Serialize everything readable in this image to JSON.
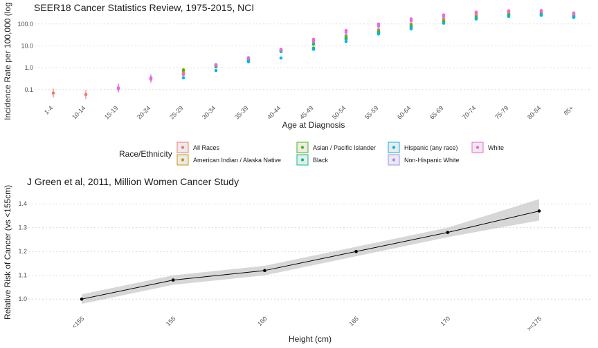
{
  "chart_data": [
    {
      "type": "scatter",
      "title": "SEER18 Cancer Statistics Review, 1975-2015, NCI",
      "xlabel": "Age at Diagnosis",
      "ylabel": "Incidence Rate per 100,000 (log",
      "yscale": "log10",
      "ylim": [
        0.02,
        700
      ],
      "yticks": [
        0.1,
        1,
        10,
        100
      ],
      "ytick_labels": [
        "0.1",
        "1.0",
        "10.0",
        "100.0"
      ],
      "grid": true,
      "legend_title": "Race/Ethnicity",
      "legend_position": "bottom",
      "categories": [
        "1-4",
        "10-14",
        "15-19",
        "20-24",
        "25-29",
        "30-34",
        "35-39",
        "40-44",
        "45-49",
        "50-54",
        "55-59",
        "60-64",
        "65-69",
        "70-74",
        "75-79",
        "80-84",
        "85+"
      ],
      "series": [
        {
          "name": "All Races",
          "color": "#F8766D",
          "values": [
            0.07,
            0.06,
            0.12,
            0.35,
            0.55,
            1.3,
            2.6,
            6.5,
            15,
            30,
            55,
            100,
            170,
            250,
            320,
            330,
            250
          ]
        },
        {
          "name": "American Indian / Alaska Native",
          "color": "#C49A00",
          "values": [
            null,
            null,
            null,
            null,
            0.7,
            null,
            null,
            null,
            7,
            20,
            40,
            80,
            140,
            230,
            280,
            320,
            260
          ]
        },
        {
          "name": "Asian / Pacific Islander",
          "color": "#53B400",
          "values": [
            null,
            null,
            null,
            null,
            0.8,
            1.1,
            2.2,
            6,
            8,
            25,
            45,
            85,
            130,
            200,
            260,
            280,
            220
          ]
        },
        {
          "name": "Black",
          "color": "#00C094",
          "values": [
            null,
            null,
            null,
            null,
            0.5,
            1.2,
            2.2,
            5.5,
            12,
            22,
            40,
            70,
            110,
            180,
            240,
            260,
            200
          ]
        },
        {
          "name": "Hispanic (any race)",
          "color": "#00B6EB",
          "values": [
            null,
            null,
            null,
            null,
            0.35,
            0.75,
            1.9,
            2.8,
            7,
            16,
            35,
            60,
            110,
            170,
            220,
            250,
            210
          ]
        },
        {
          "name": "Non-Hispanic White",
          "color": "#A58AFF",
          "values": [
            null,
            null,
            0.12,
            0.35,
            0.5,
            1.4,
            2.9,
            6.5,
            18,
            42,
            80,
            140,
            220,
            310,
            370,
            370,
            290
          ]
        },
        {
          "name": "White",
          "color": "#FB61D7",
          "values": [
            null,
            null,
            0.11,
            0.3,
            0.5,
            1.3,
            2.7,
            7,
            20,
            50,
            100,
            170,
            260,
            350,
            400,
            410,
            320
          ]
        }
      ]
    },
    {
      "type": "line",
      "title": "J Green et al, 2011, Million Women Cancer Study",
      "xlabel": "Height (cm)",
      "ylabel": "Relative Risk of Cancer (vs <155cm)",
      "ylim": [
        0.96,
        1.45
      ],
      "yticks": [
        1.0,
        1.1,
        1.2,
        1.3,
        1.4
      ],
      "ytick_labels": [
        "1.0",
        "1.1",
        "1.2",
        "1.3",
        "1.4"
      ],
      "grid": true,
      "categories": [
        "<155",
        "155",
        "160",
        "165",
        "170",
        ">=175"
      ],
      "values": [
        1.0,
        1.08,
        1.12,
        1.2,
        1.28,
        1.37
      ],
      "ci_lower": [
        0.98,
        1.06,
        1.1,
        1.18,
        1.26,
        1.33
      ],
      "ci_upper": [
        1.02,
        1.1,
        1.14,
        1.22,
        1.3,
        1.42
      ]
    }
  ]
}
